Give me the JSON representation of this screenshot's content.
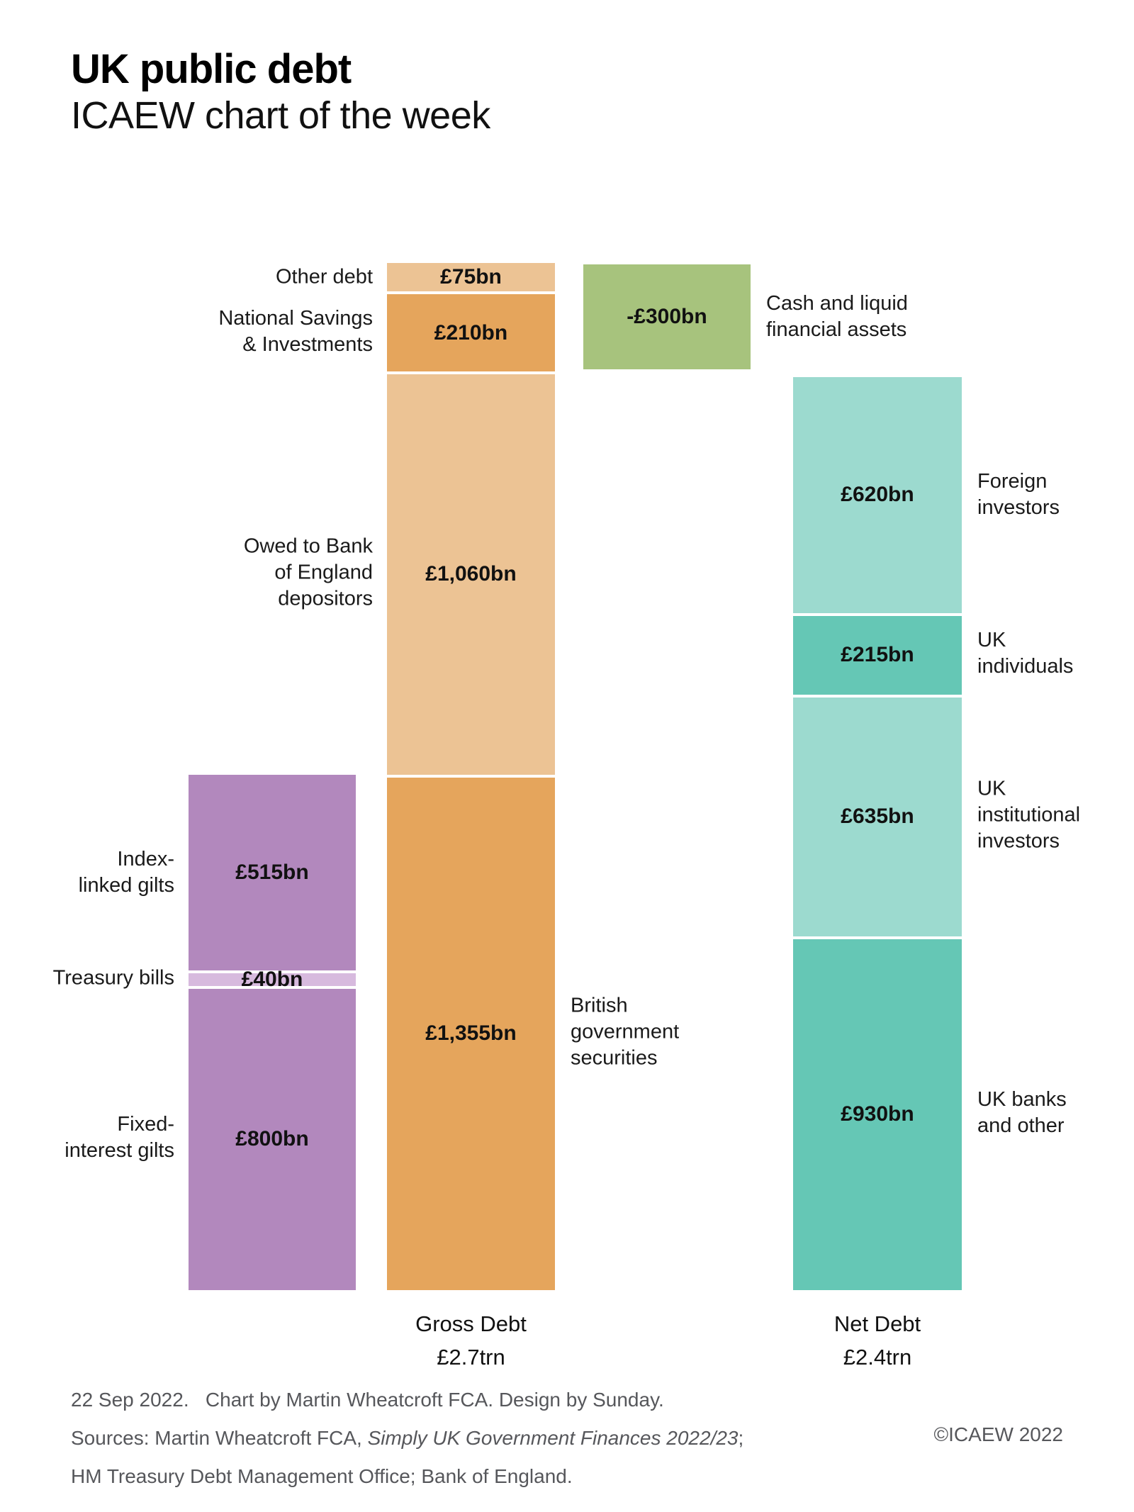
{
  "title": "UK public debt",
  "subtitle": "ICAEW chart of the week",
  "footer": {
    "line1": "22 Sep 2022.   Chart by Martin Wheatcroft FCA. Design by Sunday.",
    "sources_prefix": "Sources: Martin Wheatcroft FCA, ",
    "sources_italic": "Simply UK Government Finances 2022/23",
    "sources_suffix": ";",
    "line3": "HM Treasury Debt Management Office; Bank of England.",
    "copyright": "©ICAEW 2022"
  },
  "chart_data": {
    "type": "bar",
    "variant": "stacked-waterfall",
    "unit": "£bn",
    "grid": "off",
    "colors": {
      "purple": "#B288BD",
      "purple_light": "#D7BADE",
      "tan": "#ECC394",
      "orange": "#E5A55C",
      "green": "#A7C37D",
      "teal_light": "#9CDACF",
      "teal": "#65C7B5"
    },
    "bars": [
      {
        "id": "gilts",
        "axis_label": "",
        "total_label": "",
        "segments": [
          {
            "name": "index-linked-gilts",
            "label": "Index-\nlinked gilts",
            "label_side": "left",
            "value": 515,
            "value_label": "£515bn",
            "color_key": "purple"
          },
          {
            "name": "treasury-bills",
            "label": "Treasury bills",
            "label_side": "left",
            "value": 40,
            "value_label": "£40bn",
            "color_key": "purple_light"
          },
          {
            "name": "fixed-interest-gilts",
            "label": "Fixed-\ninterest gilts",
            "label_side": "left",
            "value": 800,
            "value_label": "£800bn",
            "color_key": "purple"
          }
        ]
      },
      {
        "id": "gross_debt",
        "axis_label": "Gross Debt\n£2.7trn",
        "total_label": "£2.7trn",
        "segments": [
          {
            "name": "other-debt",
            "label": "Other debt",
            "label_side": "left",
            "value": 75,
            "value_label": "£75bn",
            "color_key": "tan"
          },
          {
            "name": "national-savings-and-investments",
            "label": "National Savings\n& Investments",
            "label_side": "left",
            "value": 210,
            "value_label": "£210bn",
            "color_key": "orange"
          },
          {
            "name": "owed-to-bank-of-england-depositors",
            "label": "Owed to Bank\nof England\ndepositors",
            "label_side": "left",
            "value": 1060,
            "value_label": "£1,060bn",
            "color_key": "tan"
          },
          {
            "name": "british-government-securities",
            "label": "British\ngovernment\nsecurities",
            "label_side": "right",
            "value": 1355,
            "value_label": "£1,355bn",
            "color_key": "orange"
          }
        ]
      },
      {
        "id": "cash_assets",
        "axis_label": "",
        "total_label": "",
        "segments": [
          {
            "name": "cash-and-liquid-financial-assets",
            "label": "Cash and liquid\nfinancial assets",
            "label_side": "right",
            "value": -300,
            "value_label": "-£300bn",
            "color_key": "green"
          }
        ]
      },
      {
        "id": "net_debt",
        "axis_label": "Net Debt\n£2.4trn",
        "total_label": "£2.4trn",
        "segments": [
          {
            "name": "foreign-investors",
            "label": "Foreign\ninvestors",
            "label_side": "right",
            "value": 620,
            "value_label": "£620bn",
            "color_key": "teal_light"
          },
          {
            "name": "uk-individuals",
            "label": "UK\nindividuals",
            "label_side": "right",
            "value": 215,
            "value_label": "£215bn",
            "color_key": "teal"
          },
          {
            "name": "uk-institutional-investors",
            "label": "UK\ninstitutional\ninvestors",
            "label_side": "right",
            "value": 635,
            "value_label": "£635bn",
            "color_key": "teal_light"
          },
          {
            "name": "uk-banks-and-other",
            "label": "UK banks\nand other",
            "label_side": "right",
            "value": 930,
            "value_label": "£930bn",
            "color_key": "teal"
          }
        ]
      }
    ]
  }
}
